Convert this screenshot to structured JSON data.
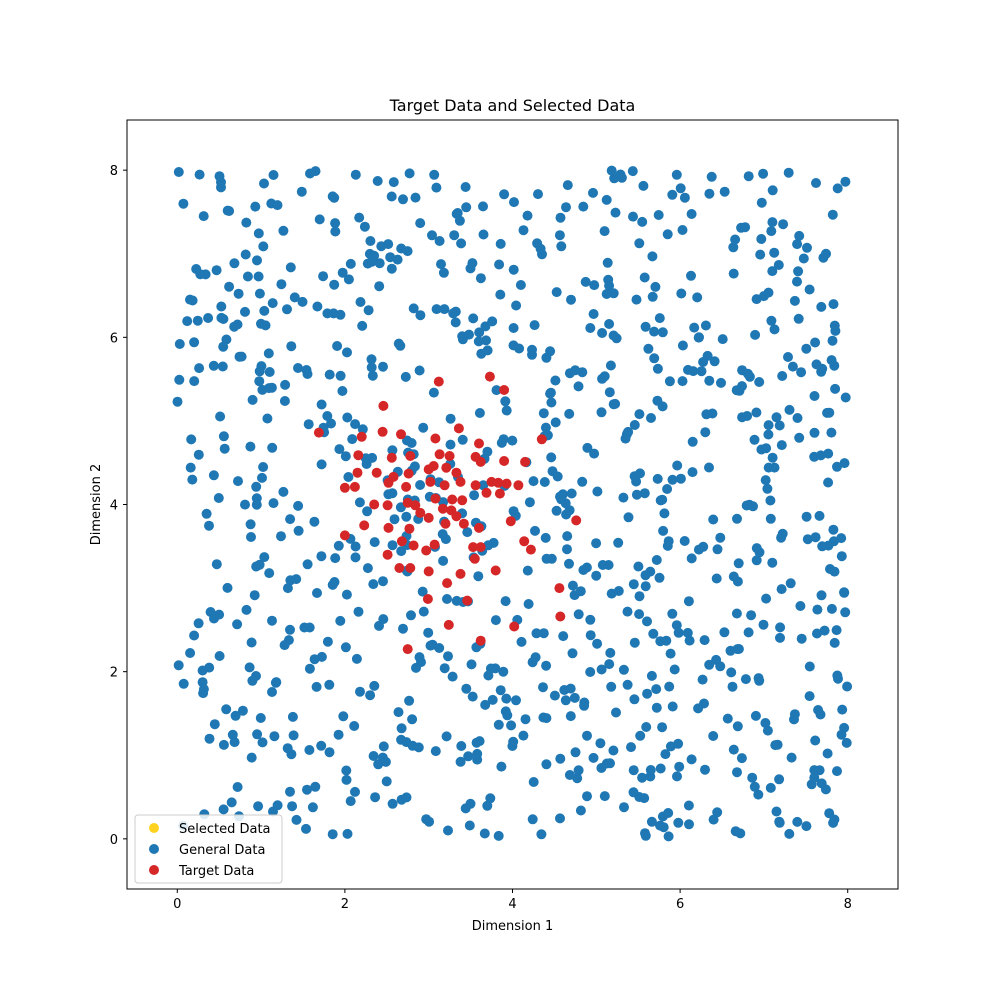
{
  "chart_data": {
    "type": "scatter",
    "title": "Target Data and Selected Data",
    "xlabel": "Dimension 1",
    "ylabel": "Dimension 2",
    "xlim": [
      -0.6,
      8.6
    ],
    "ylim": [
      -0.6,
      8.6
    ],
    "xticks": [
      0,
      2,
      4,
      6,
      8
    ],
    "yticks": [
      0,
      2,
      4,
      6,
      8
    ],
    "tick_labels": {
      "x": [
        "0",
        "2",
        "4",
        "6",
        "8"
      ],
      "y": [
        "0",
        "2",
        "4",
        "6",
        "8"
      ]
    },
    "grid": false,
    "legend_position": "lower-left",
    "colors": {
      "selected": "#ffd21f",
      "general": "#1f77b4",
      "target": "#d62728"
    },
    "series": [
      {
        "name": "Selected Data",
        "color": "#ffd21f",
        "points": []
      },
      {
        "name": "General Data",
        "color": "#1f77b4",
        "generated_sample": true,
        "count": 1000,
        "x_range": [
          0,
          8
        ],
        "y_range": [
          0,
          8
        ],
        "seed": 42
      },
      {
        "name": "Target Data",
        "color": "#d62728",
        "points": [
          [
            3.12,
            5.47
          ],
          [
            3.73,
            5.53
          ],
          [
            3.9,
            5.37
          ],
          [
            2.46,
            5.18
          ],
          [
            1.69,
            4.86
          ],
          [
            2.2,
            4.81
          ],
          [
            2.45,
            4.87
          ],
          [
            2.67,
            4.84
          ],
          [
            3.08,
            4.79
          ],
          [
            3.36,
            4.91
          ],
          [
            4.35,
            4.78
          ],
          [
            2.16,
            4.59
          ],
          [
            2.56,
            4.56
          ],
          [
            2.78,
            4.58
          ],
          [
            3.13,
            4.6
          ],
          [
            3.25,
            4.58
          ],
          [
            3.6,
            4.73
          ],
          [
            3.56,
            4.57
          ],
          [
            2.15,
            4.38
          ],
          [
            2.38,
            4.38
          ],
          [
            2.76,
            4.37
          ],
          [
            3.0,
            4.42
          ],
          [
            3.06,
            4.46
          ],
          [
            3.21,
            4.44
          ],
          [
            3.33,
            4.38
          ],
          [
            3.62,
            4.51
          ],
          [
            4.15,
            4.51
          ],
          [
            2.0,
            4.2
          ],
          [
            2.12,
            4.21
          ],
          [
            2.52,
            4.26
          ],
          [
            2.73,
            4.21
          ],
          [
            3.02,
            4.27
          ],
          [
            3.19,
            4.23
          ],
          [
            3.38,
            4.27
          ],
          [
            3.56,
            4.23
          ],
          [
            3.75,
            4.27
          ],
          [
            3.83,
            4.26
          ],
          [
            3.93,
            4.25
          ],
          [
            4.07,
            4.23
          ],
          [
            2.35,
            4.0
          ],
          [
            2.51,
            3.99
          ],
          [
            2.75,
            4.02
          ],
          [
            2.84,
            3.99
          ],
          [
            3.08,
            4.07
          ],
          [
            3.28,
            4.06
          ],
          [
            3.4,
            4.05
          ],
          [
            3.69,
            4.14
          ],
          [
            3.85,
            4.13
          ],
          [
            2.23,
            3.75
          ],
          [
            2.52,
            3.72
          ],
          [
            2.77,
            3.71
          ],
          [
            2.9,
            3.9
          ],
          [
            3.0,
            3.84
          ],
          [
            3.17,
            3.95
          ],
          [
            3.27,
            3.93
          ],
          [
            3.33,
            3.86
          ],
          [
            3.42,
            3.77
          ],
          [
            3.2,
            3.77
          ],
          [
            3.6,
            3.72
          ],
          [
            3.98,
            3.8
          ],
          [
            4.76,
            3.81
          ],
          [
            2.0,
            3.63
          ],
          [
            2.51,
            3.4
          ],
          [
            2.68,
            3.56
          ],
          [
            2.82,
            3.51
          ],
          [
            2.97,
            3.45
          ],
          [
            3.07,
            3.52
          ],
          [
            3.53,
            3.49
          ],
          [
            3.62,
            3.49
          ],
          [
            3.55,
            3.35
          ],
          [
            4.14,
            3.56
          ],
          [
            4.22,
            3.46
          ],
          [
            2.65,
            3.24
          ],
          [
            2.78,
            3.24
          ],
          [
            3.0,
            3.2
          ],
          [
            3.38,
            3.17
          ],
          [
            3.8,
            3.21
          ],
          [
            3.22,
            3.06
          ],
          [
            4.56,
            3.0
          ],
          [
            2.99,
            2.87
          ],
          [
            3.46,
            2.85
          ],
          [
            4.02,
            2.54
          ],
          [
            3.24,
            2.56
          ],
          [
            3.62,
            2.37
          ],
          [
            2.75,
            2.27
          ],
          [
            4.57,
            2.66
          ],
          [
            3.9,
            4.52
          ],
          [
            2.58,
            4.33
          ]
        ]
      }
    ]
  }
}
